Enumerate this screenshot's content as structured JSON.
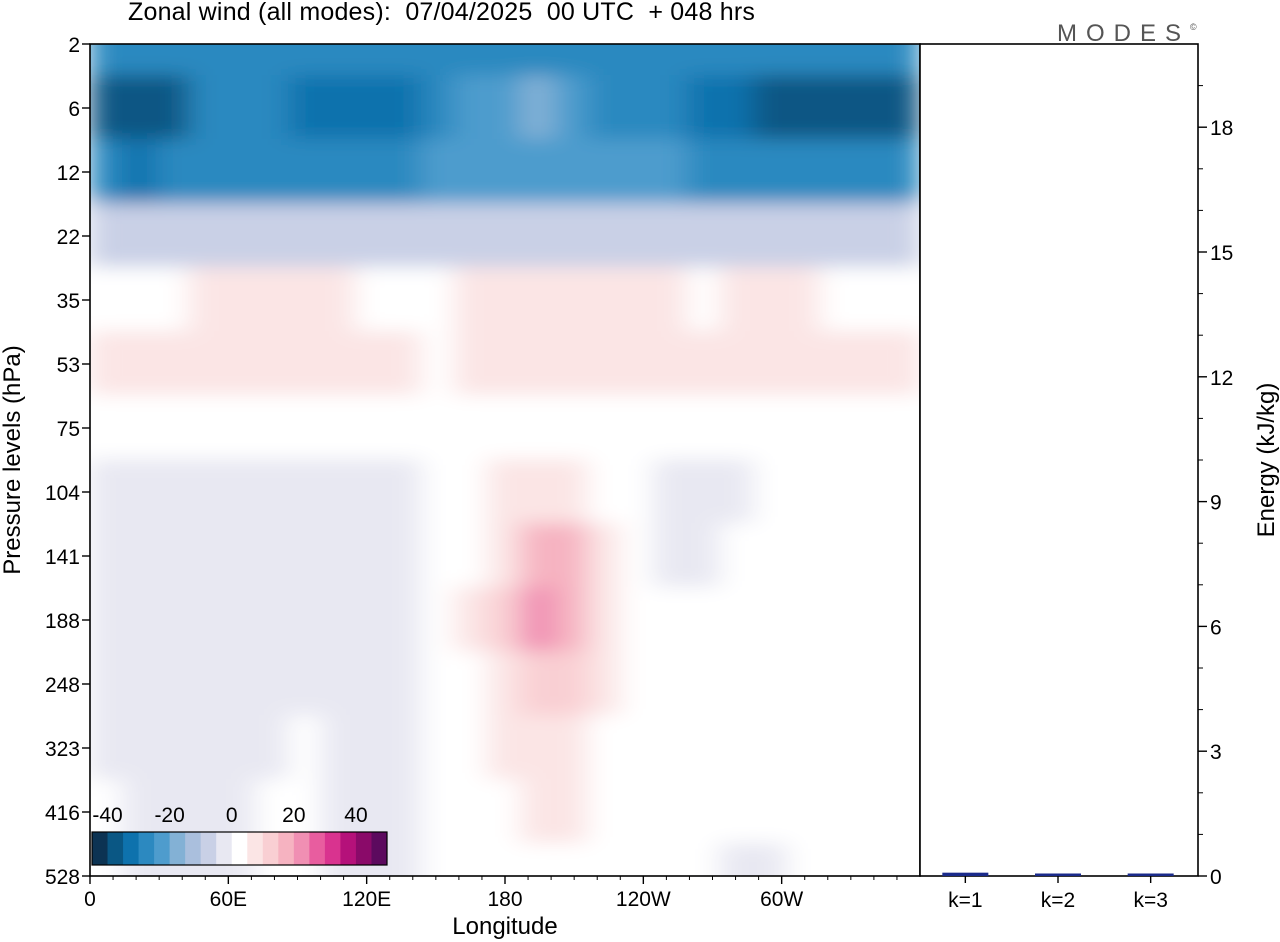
{
  "title": "Zonal wind (all modes):  07/04/2025  00 UTC  + 048 hrs",
  "brand": {
    "text": "MODES",
    "mark": "©"
  },
  "chart_data": [
    {
      "type": "heatmap",
      "xlabel": "Longitude",
      "ylabel": "Pressure levels (hPa)",
      "x_ticks": [
        "0",
        "60E",
        "120E",
        "180",
        "120W",
        "60W"
      ],
      "y_ticks": [
        "2",
        "6",
        "12",
        "22",
        "35",
        "53",
        "75",
        "104",
        "141",
        "188",
        "248",
        "323",
        "416",
        "528"
      ],
      "colorbar": {
        "tick_labels": [
          "-40",
          "-20",
          "0",
          "20",
          "40"
        ],
        "colors": [
          "#0c3353",
          "#0a5784",
          "#0e72ad",
          "#2c89c0",
          "#4e9ccd",
          "#83b1d5",
          "#aabfdd",
          "#c9d0e6",
          "#e8e8f2",
          "#ffffff",
          "#fbe5e5",
          "#f9cfd3",
          "#f6b3c1",
          "#f08fb3",
          "#e85d9f",
          "#d9338f",
          "#b5117a",
          "#8a0a69",
          "#5c0a5e"
        ]
      },
      "bands": [
        {
          "level": "2",
          "v": [
            -30,
            -30,
            -30,
            -30,
            -30,
            -30,
            -30,
            -30,
            -30,
            -30,
            -30,
            -30,
            -30,
            -30,
            -30,
            -30,
            -30,
            -30,
            -30,
            -30,
            -30,
            -30,
            -30,
            -30,
            -30
          ]
        },
        {
          "level": "6",
          "v": [
            -36,
            -38,
            -37,
            -30,
            -28,
            -29,
            -32,
            -33,
            -32,
            -31,
            -30,
            -25,
            -22,
            -20,
            -22,
            -26,
            -28,
            -29,
            -32,
            -35,
            -38,
            -39,
            -39,
            -38,
            -36
          ]
        },
        {
          "level": "12",
          "v": [
            -30,
            -31,
            -30,
            -28,
            -27,
            -27,
            -28,
            -28,
            -27,
            -26,
            -25,
            -24,
            -23,
            -22,
            -22,
            -23,
            -24,
            -25,
            -27,
            -28,
            -29,
            -30,
            -30,
            -30,
            -29
          ]
        },
        {
          "level": "22",
          "v": [
            -10,
            -10,
            -9,
            -9,
            -8,
            -8,
            -9,
            -9,
            -8,
            -8,
            -7,
            -7,
            -7,
            -6,
            -7,
            -7,
            -8,
            -8,
            -9,
            -9,
            -10,
            -10,
            -10,
            -10,
            -10
          ]
        },
        {
          "level": "35",
          "v": [
            3,
            4,
            4,
            5,
            5,
            5,
            5,
            5,
            4,
            4,
            4,
            5,
            6,
            6,
            5,
            5,
            5,
            5,
            4,
            5,
            5,
            5,
            4,
            4,
            4
          ]
        },
        {
          "level": "53",
          "v": [
            5,
            7,
            6,
            6,
            6,
            6,
            6,
            6,
            5,
            5,
            4,
            6,
            7,
            8,
            7,
            6,
            6,
            7,
            6,
            6,
            9,
            6,
            6,
            6,
            6
          ]
        },
        {
          "level": "75",
          "v": [
            2,
            2,
            1,
            1,
            1,
            1,
            1,
            1,
            1,
            1,
            2,
            2,
            3,
            4,
            3,
            2,
            1,
            1,
            1,
            1,
            2,
            2,
            2,
            2,
            2
          ]
        },
        {
          "level": "104",
          "v": [
            -1,
            -2,
            -3,
            -4,
            -4,
            -3,
            -2,
            -2,
            -2,
            -2,
            0,
            2,
            5,
            9,
            7,
            3,
            1,
            -3,
            -4,
            -2,
            2,
            3,
            3,
            2,
            0
          ]
        },
        {
          "level": "141",
          "v": [
            -1,
            -2,
            -3,
            -3,
            -2,
            -1,
            -1,
            -2,
            -4,
            -2,
            1,
            4,
            9,
            18,
            16,
            6,
            2,
            -1,
            -1,
            0,
            3,
            4,
            4,
            3,
            1
          ]
        },
        {
          "level": "188",
          "v": [
            -1,
            -2,
            -3,
            -3,
            -2,
            -1,
            -1,
            -2,
            -3,
            -1,
            2,
            5,
            10,
            20,
            17,
            7,
            2,
            0,
            0,
            1,
            3,
            4,
            4,
            3,
            1
          ]
        },
        {
          "level": "248",
          "v": [
            -1,
            -2,
            -2,
            -2,
            -2,
            -1,
            -1,
            -1,
            -2,
            -1,
            1,
            4,
            8,
            14,
            13,
            6,
            2,
            0,
            0,
            1,
            2,
            3,
            3,
            2,
            1
          ]
        },
        {
          "level": "323",
          "v": [
            -1,
            -1,
            -2,
            -2,
            -1,
            -1,
            0,
            -1,
            -2,
            -1,
            1,
            3,
            6,
            9,
            9,
            4,
            1,
            0,
            0,
            1,
            1,
            2,
            2,
            1,
            0
          ]
        },
        {
          "level": "416",
          "v": [
            0,
            -1,
            -1,
            -2,
            -1,
            0,
            0,
            -1,
            -1,
            -1,
            0,
            2,
            4,
            6,
            6,
            3,
            1,
            0,
            0,
            0,
            1,
            1,
            1,
            1,
            0
          ]
        },
        {
          "level": "528",
          "v": [
            0,
            -1,
            -1,
            -1,
            -1,
            0,
            0,
            -1,
            -1,
            -1,
            0,
            1,
            2,
            3,
            3,
            2,
            1,
            0,
            0,
            -1,
            -1,
            0,
            0,
            0,
            0
          ]
        }
      ]
    },
    {
      "type": "bar",
      "categories": [
        "k=1",
        "k=2",
        "k=3"
      ],
      "values": [
        0.08,
        0.03,
        0.04
      ],
      "ylabel": "Energy (kJ/kg)",
      "ylim": [
        0,
        20
      ],
      "y_ticks": [
        "0",
        "3",
        "6",
        "9",
        "12",
        "15",
        "18"
      ],
      "bar_color": "#1a2a8a"
    }
  ]
}
